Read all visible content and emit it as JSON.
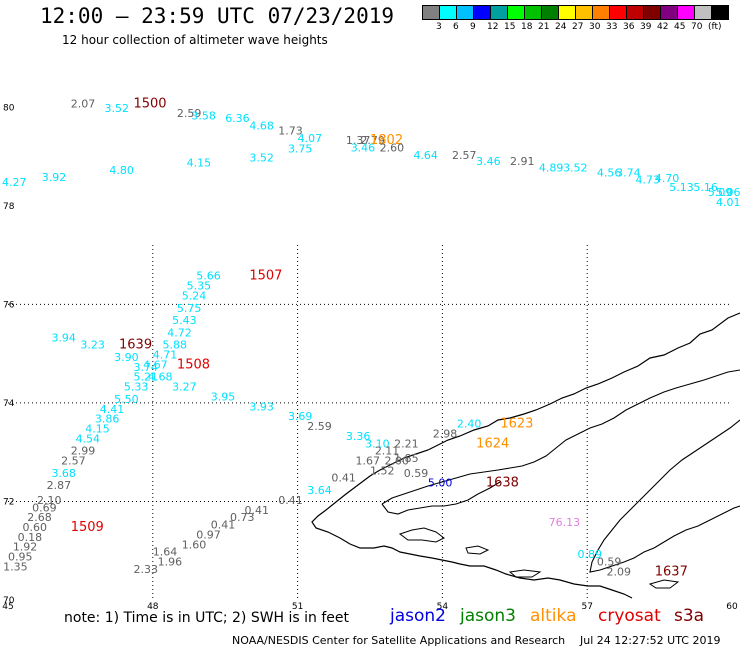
{
  "header": {
    "title": "12:00 – 23:59 UTC 07/23/2019",
    "subtitle": "12 hour collection of altimeter wave heights"
  },
  "colorbar": {
    "colors": [
      "#808080",
      "#00ffff",
      "#00c0ff",
      "#0000ff",
      "#00a0a0",
      "#00ff00",
      "#00c000",
      "#008000",
      "#ffff00",
      "#ffc000",
      "#ff8000",
      "#ff0000",
      "#c00000",
      "#800000",
      "#800080",
      "#ff00ff",
      "#c0c0c0",
      "#000000"
    ],
    "labels": [
      "3",
      "6",
      "9",
      "12",
      "15",
      "18",
      "21",
      "24",
      "27",
      "30",
      "33",
      "36",
      "39",
      "42",
      "45",
      "70",
      "(ft)"
    ]
  },
  "map": {
    "lon_range": [
      45,
      60
    ],
    "lat_range": [
      70,
      81
    ],
    "lon_ticks": [
      "45",
      "48",
      "51",
      "54",
      "57",
      "60"
    ],
    "lat_ticks": [
      "70",
      "72",
      "74",
      "76",
      "78",
      "80"
    ],
    "grid_lons": [
      48,
      51,
      54,
      57
    ],
    "grid_lats": [
      72,
      74,
      76
    ]
  },
  "colors": {
    "cyan": "#00e0ff",
    "gray": "#606060",
    "jason2": "#0000e0",
    "jason3": "#008000",
    "altika": "#ff9000",
    "cryosat": "#e00000",
    "s3a": "#800000",
    "violet": "#e080e0"
  },
  "tracks": [
    {
      "name": "top-track",
      "points": [
        {
          "lon": 46.3,
          "lat": 80.0,
          "value": "2.07",
          "c": "gray"
        },
        {
          "lon": 47.0,
          "lat": 79.9,
          "value": "3.52",
          "c": "cyan"
        },
        {
          "lon": 47.6,
          "lat": 80.0,
          "value": "1500",
          "c": "s3a",
          "time": true
        },
        {
          "lon": 48.5,
          "lat": 79.8,
          "value": "2.59",
          "c": "gray"
        },
        {
          "lon": 48.8,
          "lat": 79.75,
          "value": "3.58",
          "c": "cyan"
        },
        {
          "lon": 49.5,
          "lat": 79.7,
          "value": "6.36",
          "c": "cyan"
        },
        {
          "lon": 50.0,
          "lat": 79.55,
          "value": "4.68",
          "c": "cyan"
        },
        {
          "lon": 50.6,
          "lat": 79.45,
          "value": "1.73",
          "c": "gray"
        },
        {
          "lon": 51.0,
          "lat": 79.3,
          "value": "4.07",
          "c": "cyan"
        },
        {
          "lon": 52.0,
          "lat": 79.25,
          "value": "1.37",
          "c": "gray"
        },
        {
          "lon": 52.3,
          "lat": 79.25,
          "value": "2.79",
          "c": "gray"
        },
        {
          "lon": 52.5,
          "lat": 79.25,
          "value": "1802",
          "c": "altika",
          "time": true
        },
        {
          "lon": 52.1,
          "lat": 79.1,
          "value": "3.46",
          "c": "cyan"
        },
        {
          "lon": 52.7,
          "lat": 79.1,
          "value": "2.60",
          "c": "gray"
        },
        {
          "lon": 50.8,
          "lat": 79.08,
          "value": "3.75",
          "c": "cyan"
        },
        {
          "lon": 53.4,
          "lat": 78.95,
          "value": "4.64",
          "c": "cyan"
        },
        {
          "lon": 54.2,
          "lat": 78.95,
          "value": "2.57",
          "c": "gray"
        },
        {
          "lon": 50.0,
          "lat": 78.9,
          "value": "3.52",
          "c": "cyan"
        },
        {
          "lon": 54.7,
          "lat": 78.83,
          "value": "3.46",
          "c": "cyan"
        },
        {
          "lon": 55.4,
          "lat": 78.83,
          "value": "2.91",
          "c": "gray"
        },
        {
          "lon": 48.7,
          "lat": 78.8,
          "value": "4.15",
          "c": "cyan"
        },
        {
          "lon": 56.0,
          "lat": 78.7,
          "value": "4.89",
          "c": "cyan"
        },
        {
          "lon": 56.5,
          "lat": 78.7,
          "value": "3.52",
          "c": "cyan"
        },
        {
          "lon": 47.1,
          "lat": 78.65,
          "value": "4.80",
          "c": "cyan"
        },
        {
          "lon": 57.2,
          "lat": 78.6,
          "value": "4.56",
          "c": "cyan"
        },
        {
          "lon": 57.6,
          "lat": 78.6,
          "value": "3.74",
          "c": "cyan"
        },
        {
          "lon": 45.7,
          "lat": 78.5,
          "value": "3.92",
          "c": "cyan"
        },
        {
          "lon": 58.0,
          "lat": 78.45,
          "value": "4.73",
          "c": "cyan"
        },
        {
          "lon": 58.4,
          "lat": 78.48,
          "value": "4.70",
          "c": "cyan"
        },
        {
          "lon": 44.6,
          "lat": 78.4,
          "value": "4.27",
          "c": "cyan"
        },
        {
          "lon": 58.7,
          "lat": 78.3,
          "value": "5.13",
          "c": "cyan"
        },
        {
          "lon": 59.2,
          "lat": 78.3,
          "value": "5.16",
          "c": "cyan"
        },
        {
          "lon": 59.5,
          "lat": 78.2,
          "value": "5.09",
          "c": "cyan"
        },
        {
          "lon": 60.0,
          "lat": 78.2,
          "value": "5.06",
          "c": "cyan"
        },
        {
          "lon": 60.5,
          "lat": 78.0,
          "value": "4.01",
          "c": "cyan"
        }
      ]
    },
    {
      "name": "left-track",
      "points": [
        {
          "lon": 48.9,
          "lat": 76.5,
          "value": "5.66",
          "c": "cyan"
        },
        {
          "lon": 50.0,
          "lat": 76.5,
          "value": "1507",
          "c": "cryosat",
          "time": true
        },
        {
          "lon": 48.7,
          "lat": 76.3,
          "value": "5.35",
          "c": "cyan"
        },
        {
          "lon": 48.6,
          "lat": 76.1,
          "value": "5.24",
          "c": "cyan"
        },
        {
          "lon": 48.5,
          "lat": 75.85,
          "value": "5.75",
          "c": "cyan"
        },
        {
          "lon": 48.4,
          "lat": 75.6,
          "value": "5.43",
          "c": "cyan"
        },
        {
          "lon": 48.3,
          "lat": 75.35,
          "value": "4.72",
          "c": "cyan"
        },
        {
          "lon": 45.9,
          "lat": 75.25,
          "value": "3.94",
          "c": "cyan"
        },
        {
          "lon": 48.2,
          "lat": 75.1,
          "value": "5.88",
          "c": "cyan"
        },
        {
          "lon": 46.5,
          "lat": 75.1,
          "value": "3.23",
          "c": "cyan"
        },
        {
          "lon": 47.3,
          "lat": 75.1,
          "value": "1639",
          "c": "s3a",
          "time": true
        },
        {
          "lon": 48.0,
          "lat": 74.9,
          "value": "4.71",
          "c": "cyan"
        },
        {
          "lon": 47.2,
          "lat": 74.85,
          "value": "3.90",
          "c": "cyan"
        },
        {
          "lon": 48.5,
          "lat": 74.7,
          "value": "1508",
          "c": "cryosat",
          "time": true
        },
        {
          "lon": 47.8,
          "lat": 74.7,
          "value": "4.67",
          "c": "cyan"
        },
        {
          "lon": 47.6,
          "lat": 74.65,
          "value": "3.74",
          "c": "cyan"
        },
        {
          "lon": 47.6,
          "lat": 74.45,
          "value": "5.21",
          "c": "cyan"
        },
        {
          "lon": 47.9,
          "lat": 74.45,
          "value": "4.68",
          "c": "cyan"
        },
        {
          "lon": 47.4,
          "lat": 74.25,
          "value": "5.33",
          "c": "cyan"
        },
        {
          "lon": 48.4,
          "lat": 74.25,
          "value": "3.27",
          "c": "cyan"
        },
        {
          "lon": 47.2,
          "lat": 74.0,
          "value": "5.50",
          "c": "cyan"
        },
        {
          "lon": 49.2,
          "lat": 74.05,
          "value": "3.95",
          "c": "cyan"
        },
        {
          "lon": 46.9,
          "lat": 73.8,
          "value": "4.41",
          "c": "cyan"
        },
        {
          "lon": 50.0,
          "lat": 73.85,
          "value": "3.93",
          "c": "cyan"
        },
        {
          "lon": 46.8,
          "lat": 73.6,
          "value": "3.86",
          "c": "cyan"
        },
        {
          "lon": 50.8,
          "lat": 73.65,
          "value": "3.69",
          "c": "cyan"
        },
        {
          "lon": 46.6,
          "lat": 73.4,
          "value": "4.15",
          "c": "cyan"
        },
        {
          "lon": 51.2,
          "lat": 73.45,
          "value": "2.59",
          "c": "gray"
        },
        {
          "lon": 46.4,
          "lat": 73.2,
          "value": "4.54",
          "c": "cyan"
        },
        {
          "lon": 52.0,
          "lat": 73.25,
          "value": "3.36",
          "c": "cyan"
        },
        {
          "lon": 46.3,
          "lat": 72.95,
          "value": "2.99",
          "c": "gray"
        },
        {
          "lon": 52.4,
          "lat": 73.1,
          "value": "3.10",
          "c": "cyan"
        },
        {
          "lon": 46.1,
          "lat": 72.75,
          "value": "2.57",
          "c": "gray"
        },
        {
          "lon": 45.9,
          "lat": 72.5,
          "value": "3.68",
          "c": "cyan"
        },
        {
          "lon": 45.8,
          "lat": 72.25,
          "value": "2.87",
          "c": "gray"
        },
        {
          "lon": 45.6,
          "lat": 71.95,
          "value": "2.10",
          "c": "gray"
        },
        {
          "lon": 45.5,
          "lat": 71.8,
          "value": "0.69",
          "c": "gray"
        },
        {
          "lon": 45.4,
          "lat": 71.6,
          "value": "2.68",
          "c": "gray"
        },
        {
          "lon": 45.3,
          "lat": 71.4,
          "value": "0.60",
          "c": "gray"
        },
        {
          "lon": 46.3,
          "lat": 71.4,
          "value": "1509",
          "c": "cryosat",
          "time": true
        },
        {
          "lon": 45.2,
          "lat": 71.2,
          "value": "0.18",
          "c": "gray"
        },
        {
          "lon": 45.1,
          "lat": 71.0,
          "value": "1.92",
          "c": "gray"
        },
        {
          "lon": 45.0,
          "lat": 70.8,
          "value": "0.95",
          "c": "gray"
        },
        {
          "lon": 44.9,
          "lat": 70.6,
          "value": "1.35",
          "c": "gray"
        }
      ]
    },
    {
      "name": "center-track",
      "points": [
        {
          "lon": 53.0,
          "lat": 73.1,
          "value": "2.21",
          "c": "gray"
        },
        {
          "lon": 53.8,
          "lat": 73.3,
          "value": "2.98",
          "c": "gray"
        },
        {
          "lon": 54.3,
          "lat": 73.5,
          "value": "2.40",
          "c": "cyan"
        },
        {
          "lon": 55.2,
          "lat": 73.5,
          "value": "1623",
          "c": "altika",
          "time": true
        },
        {
          "lon": 54.7,
          "lat": 73.1,
          "value": "1624",
          "c": "altika",
          "time": true
        },
        {
          "lon": 52.6,
          "lat": 72.95,
          "value": "2.11",
          "c": "gray"
        },
        {
          "lon": 52.2,
          "lat": 72.75,
          "value": "1.67",
          "c": "gray"
        },
        {
          "lon": 52.8,
          "lat": 72.75,
          "value": "2.00",
          "c": "gray"
        },
        {
          "lon": 53.0,
          "lat": 72.8,
          "value": "1.85",
          "c": "gray"
        },
        {
          "lon": 52.5,
          "lat": 72.55,
          "value": "1.52",
          "c": "gray"
        },
        {
          "lon": 53.2,
          "lat": 72.5,
          "value": "0.59",
          "c": "gray"
        },
        {
          "lon": 51.7,
          "lat": 72.4,
          "value": "0.41",
          "c": "gray"
        },
        {
          "lon": 53.7,
          "lat": 72.3,
          "value": "5.00",
          "c": "jason2"
        },
        {
          "lon": 54.9,
          "lat": 72.3,
          "value": "1638",
          "c": "s3a",
          "time": true
        },
        {
          "lon": 51.2,
          "lat": 72.15,
          "value": "3.64",
          "c": "cyan"
        },
        {
          "lon": 50.6,
          "lat": 71.95,
          "value": "0.41",
          "c": "gray"
        },
        {
          "lon": 49.9,
          "lat": 71.75,
          "value": "0.41",
          "c": "gray"
        },
        {
          "lon": 49.6,
          "lat": 71.6,
          "value": "0.73",
          "c": "gray"
        },
        {
          "lon": 49.2,
          "lat": 71.45,
          "value": "0.41",
          "c": "gray"
        },
        {
          "lon": 48.9,
          "lat": 71.25,
          "value": "0.97",
          "c": "gray"
        },
        {
          "lon": 48.6,
          "lat": 71.05,
          "value": "1.60",
          "c": "gray"
        },
        {
          "lon": 48.0,
          "lat": 70.9,
          "value": "1.64",
          "c": "gray"
        },
        {
          "lon": 48.1,
          "lat": 70.7,
          "value": "1.96",
          "c": "gray"
        },
        {
          "lon": 47.6,
          "lat": 70.55,
          "value": "2.33",
          "c": "gray"
        }
      ]
    },
    {
      "name": "lower-right-track",
      "points": [
        {
          "lon": 56.2,
          "lat": 71.5,
          "value": "76.13",
          "c": "violet"
        },
        {
          "lon": 56.8,
          "lat": 70.85,
          "value": "0.89",
          "c": "cyan"
        },
        {
          "lon": 57.2,
          "lat": 70.7,
          "value": "0.59",
          "c": "gray"
        },
        {
          "lon": 57.4,
          "lat": 70.5,
          "value": "2.09",
          "c": "gray"
        },
        {
          "lon": 58.4,
          "lat": 70.5,
          "value": "1637",
          "c": "s3a",
          "time": true
        }
      ]
    }
  ],
  "footer": {
    "note": "note:  1) Time is in UTC;  2) SWH is in feet",
    "legend": [
      {
        "label": "jason2",
        "color": "#0000e0"
      },
      {
        "label": "jason3",
        "color": "#008000"
      },
      {
        "label": "altika",
        "color": "#ff9000"
      },
      {
        "label": "cryosat",
        "color": "#e00000"
      },
      {
        "label": "s3a",
        "color": "#800000"
      }
    ],
    "credit": "NOAA/NESDIS Center for Satellite Applications and Research",
    "stamp": "Jul 24 12:27:52 UTC 2019"
  }
}
